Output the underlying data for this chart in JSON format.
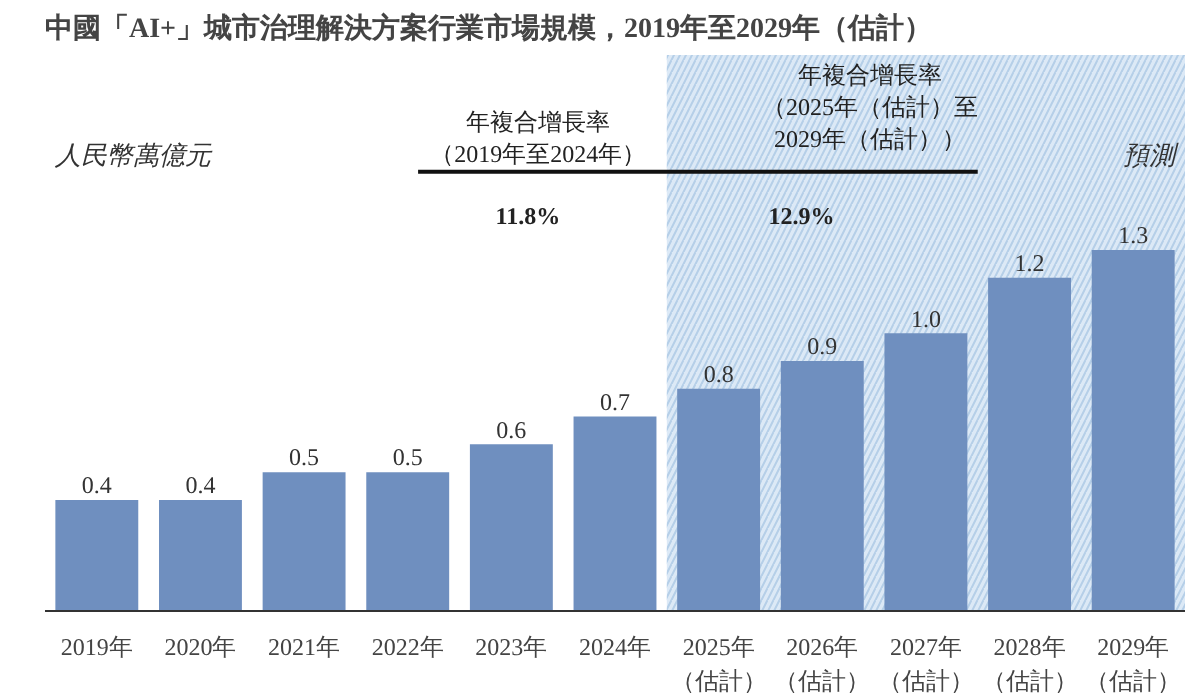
{
  "chart_data": {
    "type": "bar",
    "title": "中國「AI+」城市治理解決方案行業市場規模，2019年至2029年（估計）",
    "ylabel": "人民幣萬億元",
    "categories": [
      "2019年",
      "2020年",
      "2021年",
      "2022年",
      "2023年",
      "2024年",
      "2025年（估計）",
      "2026年（估計）",
      "2027年（估計）",
      "2028年（估計）",
      "2029年（估計）"
    ],
    "values": [
      0.4,
      0.4,
      0.5,
      0.5,
      0.6,
      0.7,
      0.8,
      0.9,
      1.0,
      1.2,
      1.3
    ],
    "color": "#6f8fbf",
    "value_labels": [
      "0.4",
      "0.4",
      "0.5",
      "0.5",
      "0.6",
      "0.7",
      "0.8",
      "0.9",
      "1.0",
      "1.2",
      "1.3"
    ],
    "bands": [
      {
        "axis": "x",
        "from": "2025年（估計）",
        "to": "2029年（估計）",
        "label": "預測",
        "color": "#dce9f6"
      }
    ],
    "annotations": [
      "年複合增長率（2019年至2024年）",
      "11.8%",
      "年複合增長率（2025年（估計）至2029年（估計））",
      "12.9%"
    ],
    "grid": false
  }
}
